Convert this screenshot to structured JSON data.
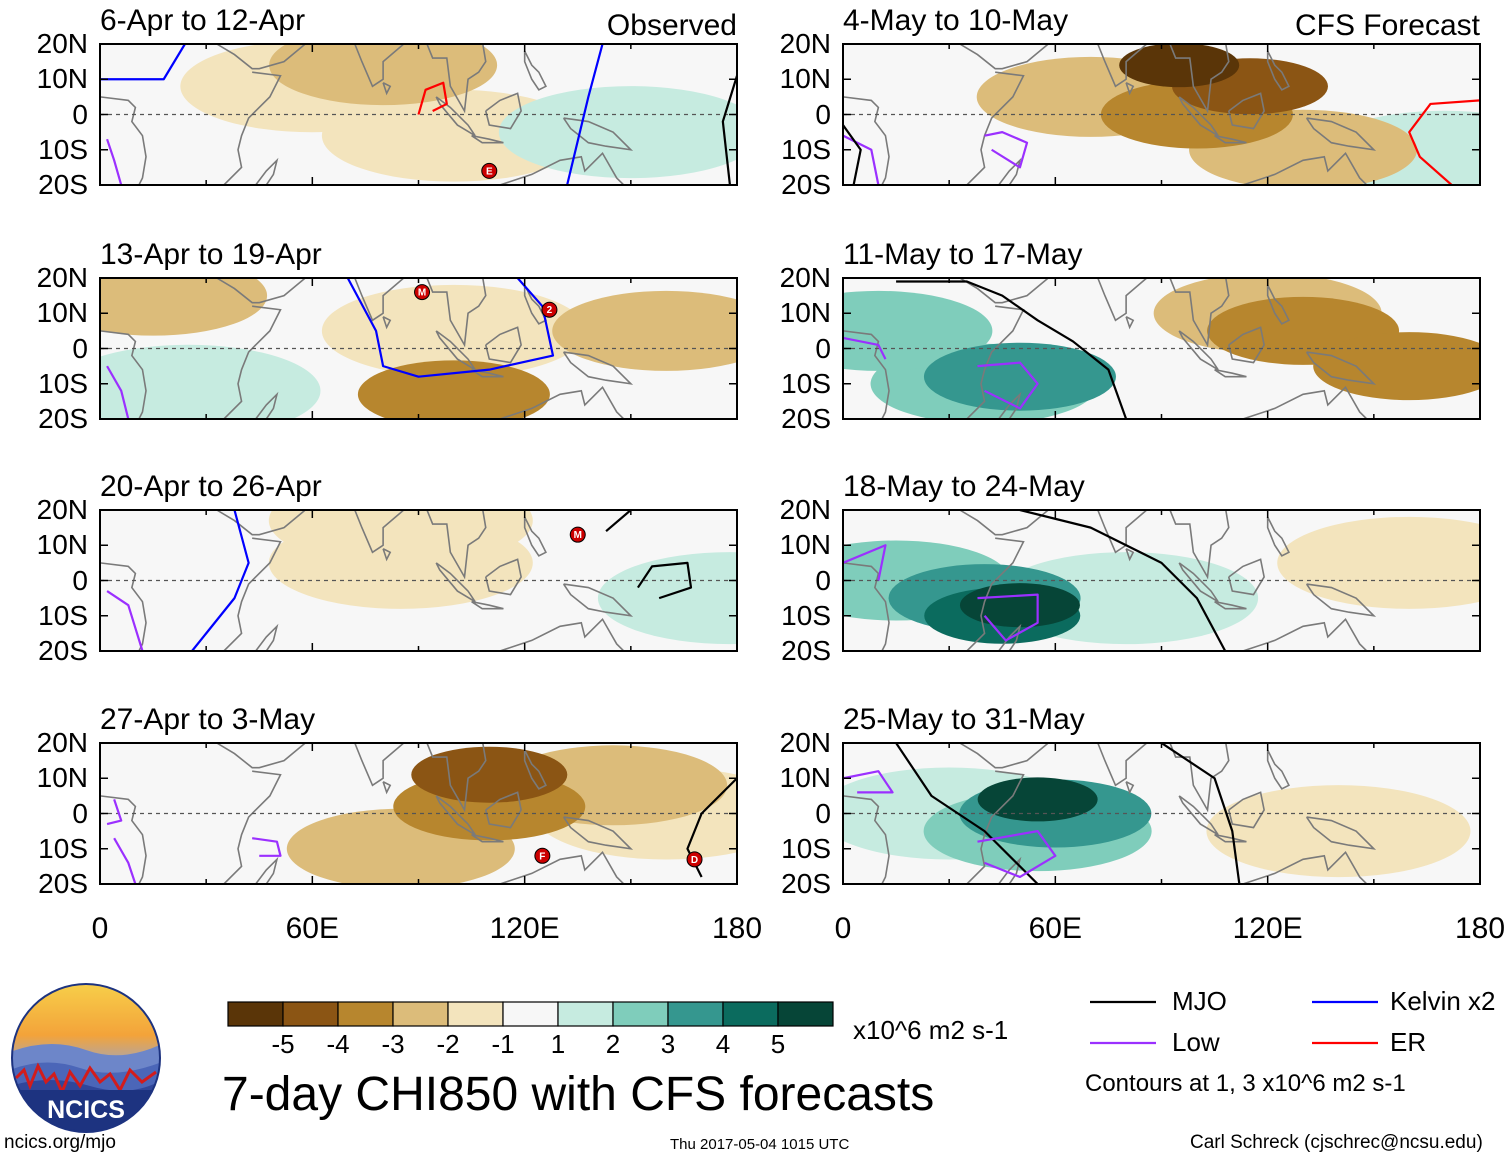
{
  "chart_data": {
    "type": "heatmap",
    "title": "7-day CHI850 with CFS forecasts",
    "variable": "CHI850",
    "units": "x10^6 m2 s-1",
    "x_ticks": [
      "0",
      "60E",
      "120E",
      "180"
    ],
    "y_ticks": [
      "20N",
      "10N",
      "0",
      "10S",
      "20S"
    ],
    "xlim": [
      0,
      180
    ],
    "ylim": [
      -20,
      20
    ],
    "colorbar": {
      "ticks": [
        "-5",
        "-4",
        "-3",
        "-2",
        "-1",
        "1",
        "2",
        "3",
        "4",
        "5"
      ],
      "colors": [
        "#5a3508",
        "#8b5514",
        "#b7862e",
        "#dcbc7a",
        "#f3e4bd",
        "#f7f7f7",
        "#c6ebe0",
        "#7fcdbb",
        "#35978f",
        "#0b6b5e",
        "#064537"
      ]
    },
    "columns": [
      "Observed",
      "CFS Forecast"
    ],
    "panels": [
      {
        "title": "6-Apr to 12-Apr",
        "tag": "Observed",
        "source": "observed",
        "anomalies": [
          {
            "lon": 80,
            "lat": 14,
            "value": -2
          },
          {
            "lon": 60,
            "lat": 8,
            "value": -1
          },
          {
            "lon": 100,
            "lat": -6,
            "value": -1
          },
          {
            "lon": 150,
            "lat": -5,
            "value": 1
          }
        ],
        "contours": [
          {
            "kind": "Kelvin x2",
            "points": [
              [
                0,
                10
              ],
              [
                18,
                10
              ],
              [
                24,
                20
              ]
            ]
          },
          {
            "kind": "Kelvin x2",
            "points": [
              [
                142,
                20
              ],
              [
                138,
                5
              ],
              [
                132,
                -20
              ]
            ]
          },
          {
            "kind": "ER",
            "points": [
              [
                90,
                0
              ],
              [
                92,
                7
              ],
              [
                97,
                9
              ],
              [
                98,
                3
              ],
              [
                94,
                1
              ]
            ]
          },
          {
            "kind": "Low",
            "points": [
              [
                2,
                -7
              ],
              [
                4,
                -13
              ],
              [
                6,
                -20
              ]
            ]
          },
          {
            "kind": "MJO",
            "points": [
              [
                180,
                11
              ],
              [
                176,
                -2
              ],
              [
                178,
                -20
              ]
            ]
          }
        ],
        "storms": [
          {
            "label": "E",
            "lon": 110,
            "lat": -16
          }
        ]
      },
      {
        "title": "13-Apr to 19-Apr",
        "tag": "",
        "source": "observed",
        "anomalies": [
          {
            "lon": 15,
            "lat": 15,
            "value": -2
          },
          {
            "lon": 100,
            "lat": -13,
            "value": -3
          },
          {
            "lon": 160,
            "lat": 5,
            "value": -2
          },
          {
            "lon": 100,
            "lat": 5,
            "value": -1
          },
          {
            "lon": 25,
            "lat": -12,
            "value": 1
          }
        ],
        "contours": [
          {
            "kind": "Kelvin x2",
            "points": [
              [
                70,
                20
              ],
              [
                78,
                5
              ],
              [
                80,
                -5
              ],
              [
                90,
                -8
              ],
              [
                110,
                -6
              ],
              [
                128,
                -2
              ],
              [
                125,
                12
              ],
              [
                118,
                20
              ]
            ]
          },
          {
            "kind": "Low",
            "points": [
              [
                2,
                -5
              ],
              [
                6,
                -12
              ],
              [
                8,
                -20
              ]
            ]
          }
        ],
        "storms": [
          {
            "label": "M",
            "lon": 91,
            "lat": 16
          },
          {
            "label": "2",
            "lon": 127,
            "lat": 11
          }
        ]
      },
      {
        "title": "20-Apr to 26-Apr",
        "tag": "",
        "source": "observed",
        "anomalies": [
          {
            "lon": 85,
            "lat": 5,
            "value": -1
          },
          {
            "lon": 85,
            "lat": 17,
            "value": -1
          },
          {
            "lon": 178,
            "lat": -5,
            "value": 1
          }
        ],
        "contours": [
          {
            "kind": "Kelvin x2",
            "points": [
              [
                38,
                20
              ],
              [
                42,
                5
              ],
              [
                38,
                -5
              ],
              [
                30,
                -15
              ],
              [
                26,
                -20
              ]
            ]
          },
          {
            "kind": "Low",
            "points": [
              [
                2,
                -3
              ],
              [
                8,
                -7
              ],
              [
                12,
                -20
              ]
            ]
          },
          {
            "kind": "MJO",
            "points": [
              [
                152,
                -2
              ],
              [
                156,
                4
              ],
              [
                166,
                5
              ],
              [
                167,
                -2
              ],
              [
                158,
                -5
              ]
            ]
          },
          {
            "kind": "MJO",
            "points": [
              [
                143,
                14
              ],
              [
                150,
                20
              ]
            ]
          }
        ],
        "storms": [
          {
            "label": "M",
            "lon": 135,
            "lat": 13
          }
        ]
      },
      {
        "title": "27-Apr to 3-May",
        "tag": "",
        "source": "observed",
        "anomalies": [
          {
            "lon": 110,
            "lat": 11,
            "value": -4
          },
          {
            "lon": 110,
            "lat": 2,
            "value": -3
          },
          {
            "lon": 85,
            "lat": -10,
            "value": -2
          },
          {
            "lon": 145,
            "lat": 8,
            "value": -2
          },
          {
            "lon": 160,
            "lat": 0,
            "value": -1
          }
        ],
        "contours": [
          {
            "kind": "Low",
            "points": [
              [
                4,
                4
              ],
              [
                6,
                -2
              ],
              [
                2,
                -3
              ]
            ]
          },
          {
            "kind": "Low",
            "points": [
              [
                4,
                -7
              ],
              [
                8,
                -14
              ],
              [
                10,
                -20
              ]
            ]
          },
          {
            "kind": "Low",
            "points": [
              [
                43,
                -7
              ],
              [
                50,
                -8
              ],
              [
                51,
                -12
              ],
              [
                45,
                -12
              ]
            ]
          },
          {
            "kind": "MJO",
            "points": [
              [
                180,
                10
              ],
              [
                170,
                0
              ],
              [
                166,
                -10
              ],
              [
                170,
                -18
              ]
            ]
          }
        ],
        "storms": [
          {
            "label": "F",
            "lon": 125,
            "lat": -12
          },
          {
            "label": "D",
            "lon": 168,
            "lat": -13
          }
        ]
      },
      {
        "title": "4-May to 10-May",
        "tag": "CFS Forecast",
        "source": "forecast",
        "anomalies": [
          {
            "lon": 95,
            "lat": 14,
            "value": -5
          },
          {
            "lon": 115,
            "lat": 8,
            "value": -4
          },
          {
            "lon": 100,
            "lat": 0,
            "value": -3
          },
          {
            "lon": 70,
            "lat": 5,
            "value": -2
          },
          {
            "lon": 130,
            "lat": -10,
            "value": -2
          },
          {
            "lon": 170,
            "lat": -12,
            "value": 1
          }
        ],
        "contours": [
          {
            "kind": "ER",
            "points": [
              [
                180,
                4
              ],
              [
                166,
                3
              ],
              [
                160,
                -5
              ],
              [
                163,
                -12
              ],
              [
                172,
                -20
              ]
            ]
          },
          {
            "kind": "Low",
            "points": [
              [
                40,
                -6
              ],
              [
                45,
                -5
              ],
              [
                52,
                -8
              ],
              [
                50,
                -15
              ],
              [
                42,
                -10
              ]
            ]
          },
          {
            "kind": "Low",
            "points": [
              [
                0,
                -6
              ],
              [
                8,
                -10
              ],
              [
                10,
                -20
              ]
            ]
          },
          {
            "kind": "MJO",
            "points": [
              [
                0,
                -3
              ],
              [
                5,
                -10
              ],
              [
                3,
                -20
              ]
            ]
          }
        ],
        "storms": []
      },
      {
        "title": "11-May to 17-May",
        "tag": "",
        "source": "forecast",
        "anomalies": [
          {
            "lon": 130,
            "lat": 5,
            "value": -3
          },
          {
            "lon": 160,
            "lat": -5,
            "value": -3
          },
          {
            "lon": 120,
            "lat": 10,
            "value": -2
          },
          {
            "lon": 40,
            "lat": -10,
            "value": 2
          },
          {
            "lon": 50,
            "lat": -8,
            "value": 3
          },
          {
            "lon": 10,
            "lat": 5,
            "value": 2
          }
        ],
        "contours": [
          {
            "kind": "MJO",
            "points": [
              [
                15,
                19
              ],
              [
                35,
                19
              ],
              [
                45,
                15
              ],
              [
                55,
                8
              ],
              [
                65,
                2
              ],
              [
                75,
                -6
              ],
              [
                80,
                -20
              ]
            ]
          },
          {
            "kind": "Low",
            "points": [
              [
                38,
                -5
              ],
              [
                50,
                -4
              ],
              [
                55,
                -10
              ],
              [
                50,
                -17
              ],
              [
                40,
                -12
              ]
            ]
          },
          {
            "kind": "Low",
            "points": [
              [
                0,
                3
              ],
              [
                10,
                1
              ],
              [
                12,
                -3
              ]
            ]
          }
        ],
        "storms": []
      },
      {
        "title": "18-May to 24-May",
        "tag": "",
        "source": "forecast",
        "anomalies": [
          {
            "lon": 50,
            "lat": -7,
            "value": 5
          },
          {
            "lon": 45,
            "lat": -10,
            "value": 4
          },
          {
            "lon": 40,
            "lat": -5,
            "value": 3
          },
          {
            "lon": 15,
            "lat": 0,
            "value": 2
          },
          {
            "lon": 80,
            "lat": -5,
            "value": 1
          },
          {
            "lon": 160,
            "lat": 5,
            "value": -1
          }
        ],
        "contours": [
          {
            "kind": "MJO",
            "points": [
              [
                50,
                20
              ],
              [
                70,
                15
              ],
              [
                90,
                5
              ],
              [
                100,
                -5
              ],
              [
                108,
                -20
              ]
            ]
          },
          {
            "kind": "Low",
            "points": [
              [
                38,
                -5
              ],
              [
                55,
                -4
              ],
              [
                55,
                -12
              ],
              [
                46,
                -17
              ],
              [
                40,
                -10
              ]
            ]
          },
          {
            "kind": "Low",
            "points": [
              [
                0,
                5
              ],
              [
                12,
                10
              ],
              [
                10,
                0
              ]
            ]
          }
        ],
        "storms": []
      },
      {
        "title": "25-May to 31-May",
        "tag": "",
        "source": "forecast",
        "anomalies": [
          {
            "lon": 55,
            "lat": 4,
            "value": 5
          },
          {
            "lon": 60,
            "lat": 0,
            "value": 3
          },
          {
            "lon": 55,
            "lat": -5,
            "value": 2
          },
          {
            "lon": 30,
            "lat": 0,
            "value": 1
          },
          {
            "lon": 140,
            "lat": -5,
            "value": -1
          }
        ],
        "contours": [
          {
            "kind": "MJO",
            "points": [
              [
                15,
                20
              ],
              [
                25,
                5
              ],
              [
                40,
                -5
              ],
              [
                55,
                -20
              ]
            ]
          },
          {
            "kind": "MJO",
            "points": [
              [
                90,
                20
              ],
              [
                105,
                10
              ],
              [
                110,
                -5
              ],
              [
                112,
                -20
              ]
            ]
          },
          {
            "kind": "Low",
            "points": [
              [
                38,
                -8
              ],
              [
                55,
                -5
              ],
              [
                60,
                -12
              ],
              [
                50,
                -18
              ],
              [
                40,
                -14
              ]
            ]
          },
          {
            "kind": "Low",
            "points": [
              [
                0,
                10
              ],
              [
                10,
                12
              ],
              [
                14,
                6
              ],
              [
                4,
                6
              ]
            ]
          }
        ],
        "storms": []
      }
    ],
    "legend": {
      "entries": [
        {
          "name": "MJO",
          "color": "#000000"
        },
        {
          "name": "Kelvin x2",
          "color": "#0000ff"
        },
        {
          "name": "Low",
          "color": "#9b30ff"
        },
        {
          "name": "ER",
          "color": "#ff0000"
        }
      ],
      "note": "Contours at 1, 3 x10^6 m2 s-1"
    }
  },
  "branding": {
    "logo_text": "NCICS",
    "url": "ncics.org/mjo",
    "timestamp": "Thu 2017-05-04 1015 UTC",
    "credit": "Carl Schreck (cjschrec@ncsu.edu)"
  },
  "colors": {
    "frame": "#000000",
    "map_lines": "#7a7a7a",
    "background": "#ffffff",
    "storm": "#cc0000"
  }
}
